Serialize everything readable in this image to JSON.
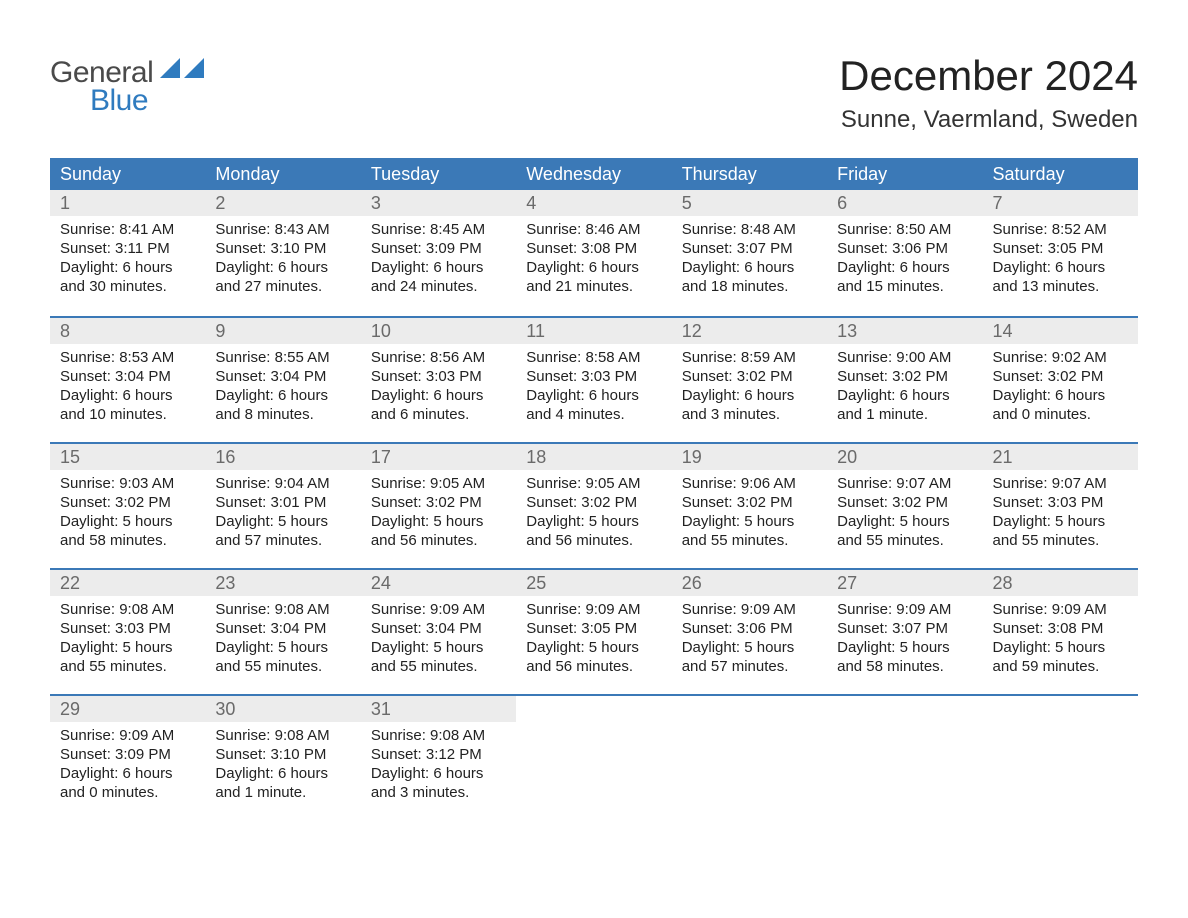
{
  "logo": {
    "general": "General",
    "blue": "Blue"
  },
  "title": "December 2024",
  "location": "Sunne, Vaermland, Sweden",
  "colors": {
    "header_bg": "#3b79b7",
    "header_text": "#ffffff",
    "daynum_bg": "#ececec",
    "daynum_text": "#6a6a6a",
    "logo_gray": "#4a4a4a",
    "logo_blue": "#2f7bbf"
  },
  "day_names": [
    "Sunday",
    "Monday",
    "Tuesday",
    "Wednesday",
    "Thursday",
    "Friday",
    "Saturday"
  ],
  "weeks": [
    [
      {
        "day": "1",
        "sunrise": "Sunrise: 8:41 AM",
        "sunset": "Sunset: 3:11 PM",
        "daylight1": "Daylight: 6 hours",
        "daylight2": "and 30 minutes."
      },
      {
        "day": "2",
        "sunrise": "Sunrise: 8:43 AM",
        "sunset": "Sunset: 3:10 PM",
        "daylight1": "Daylight: 6 hours",
        "daylight2": "and 27 minutes."
      },
      {
        "day": "3",
        "sunrise": "Sunrise: 8:45 AM",
        "sunset": "Sunset: 3:09 PM",
        "daylight1": "Daylight: 6 hours",
        "daylight2": "and 24 minutes."
      },
      {
        "day": "4",
        "sunrise": "Sunrise: 8:46 AM",
        "sunset": "Sunset: 3:08 PM",
        "daylight1": "Daylight: 6 hours",
        "daylight2": "and 21 minutes."
      },
      {
        "day": "5",
        "sunrise": "Sunrise: 8:48 AM",
        "sunset": "Sunset: 3:07 PM",
        "daylight1": "Daylight: 6 hours",
        "daylight2": "and 18 minutes."
      },
      {
        "day": "6",
        "sunrise": "Sunrise: 8:50 AM",
        "sunset": "Sunset: 3:06 PM",
        "daylight1": "Daylight: 6 hours",
        "daylight2": "and 15 minutes."
      },
      {
        "day": "7",
        "sunrise": "Sunrise: 8:52 AM",
        "sunset": "Sunset: 3:05 PM",
        "daylight1": "Daylight: 6 hours",
        "daylight2": "and 13 minutes."
      }
    ],
    [
      {
        "day": "8",
        "sunrise": "Sunrise: 8:53 AM",
        "sunset": "Sunset: 3:04 PM",
        "daylight1": "Daylight: 6 hours",
        "daylight2": "and 10 minutes."
      },
      {
        "day": "9",
        "sunrise": "Sunrise: 8:55 AM",
        "sunset": "Sunset: 3:04 PM",
        "daylight1": "Daylight: 6 hours",
        "daylight2": "and 8 minutes."
      },
      {
        "day": "10",
        "sunrise": "Sunrise: 8:56 AM",
        "sunset": "Sunset: 3:03 PM",
        "daylight1": "Daylight: 6 hours",
        "daylight2": "and 6 minutes."
      },
      {
        "day": "11",
        "sunrise": "Sunrise: 8:58 AM",
        "sunset": "Sunset: 3:03 PM",
        "daylight1": "Daylight: 6 hours",
        "daylight2": "and 4 minutes."
      },
      {
        "day": "12",
        "sunrise": "Sunrise: 8:59 AM",
        "sunset": "Sunset: 3:02 PM",
        "daylight1": "Daylight: 6 hours",
        "daylight2": "and 3 minutes."
      },
      {
        "day": "13",
        "sunrise": "Sunrise: 9:00 AM",
        "sunset": "Sunset: 3:02 PM",
        "daylight1": "Daylight: 6 hours",
        "daylight2": "and 1 minute."
      },
      {
        "day": "14",
        "sunrise": "Sunrise: 9:02 AM",
        "sunset": "Sunset: 3:02 PM",
        "daylight1": "Daylight: 6 hours",
        "daylight2": "and 0 minutes."
      }
    ],
    [
      {
        "day": "15",
        "sunrise": "Sunrise: 9:03 AM",
        "sunset": "Sunset: 3:02 PM",
        "daylight1": "Daylight: 5 hours",
        "daylight2": "and 58 minutes."
      },
      {
        "day": "16",
        "sunrise": "Sunrise: 9:04 AM",
        "sunset": "Sunset: 3:01 PM",
        "daylight1": "Daylight: 5 hours",
        "daylight2": "and 57 minutes."
      },
      {
        "day": "17",
        "sunrise": "Sunrise: 9:05 AM",
        "sunset": "Sunset: 3:02 PM",
        "daylight1": "Daylight: 5 hours",
        "daylight2": "and 56 minutes."
      },
      {
        "day": "18",
        "sunrise": "Sunrise: 9:05 AM",
        "sunset": "Sunset: 3:02 PM",
        "daylight1": "Daylight: 5 hours",
        "daylight2": "and 56 minutes."
      },
      {
        "day": "19",
        "sunrise": "Sunrise: 9:06 AM",
        "sunset": "Sunset: 3:02 PM",
        "daylight1": "Daylight: 5 hours",
        "daylight2": "and 55 minutes."
      },
      {
        "day": "20",
        "sunrise": "Sunrise: 9:07 AM",
        "sunset": "Sunset: 3:02 PM",
        "daylight1": "Daylight: 5 hours",
        "daylight2": "and 55 minutes."
      },
      {
        "day": "21",
        "sunrise": "Sunrise: 9:07 AM",
        "sunset": "Sunset: 3:03 PM",
        "daylight1": "Daylight: 5 hours",
        "daylight2": "and 55 minutes."
      }
    ],
    [
      {
        "day": "22",
        "sunrise": "Sunrise: 9:08 AM",
        "sunset": "Sunset: 3:03 PM",
        "daylight1": "Daylight: 5 hours",
        "daylight2": "and 55 minutes."
      },
      {
        "day": "23",
        "sunrise": "Sunrise: 9:08 AM",
        "sunset": "Sunset: 3:04 PM",
        "daylight1": "Daylight: 5 hours",
        "daylight2": "and 55 minutes."
      },
      {
        "day": "24",
        "sunrise": "Sunrise: 9:09 AM",
        "sunset": "Sunset: 3:04 PM",
        "daylight1": "Daylight: 5 hours",
        "daylight2": "and 55 minutes."
      },
      {
        "day": "25",
        "sunrise": "Sunrise: 9:09 AM",
        "sunset": "Sunset: 3:05 PM",
        "daylight1": "Daylight: 5 hours",
        "daylight2": "and 56 minutes."
      },
      {
        "day": "26",
        "sunrise": "Sunrise: 9:09 AM",
        "sunset": "Sunset: 3:06 PM",
        "daylight1": "Daylight: 5 hours",
        "daylight2": "and 57 minutes."
      },
      {
        "day": "27",
        "sunrise": "Sunrise: 9:09 AM",
        "sunset": "Sunset: 3:07 PM",
        "daylight1": "Daylight: 5 hours",
        "daylight2": "and 58 minutes."
      },
      {
        "day": "28",
        "sunrise": "Sunrise: 9:09 AM",
        "sunset": "Sunset: 3:08 PM",
        "daylight1": "Daylight: 5 hours",
        "daylight2": "and 59 minutes."
      }
    ],
    [
      {
        "day": "29",
        "sunrise": "Sunrise: 9:09 AM",
        "sunset": "Sunset: 3:09 PM",
        "daylight1": "Daylight: 6 hours",
        "daylight2": "and 0 minutes."
      },
      {
        "day": "30",
        "sunrise": "Sunrise: 9:08 AM",
        "sunset": "Sunset: 3:10 PM",
        "daylight1": "Daylight: 6 hours",
        "daylight2": "and 1 minute."
      },
      {
        "day": "31",
        "sunrise": "Sunrise: 9:08 AM",
        "sunset": "Sunset: 3:12 PM",
        "daylight1": "Daylight: 6 hours",
        "daylight2": "and 3 minutes."
      },
      null,
      null,
      null,
      null
    ]
  ]
}
